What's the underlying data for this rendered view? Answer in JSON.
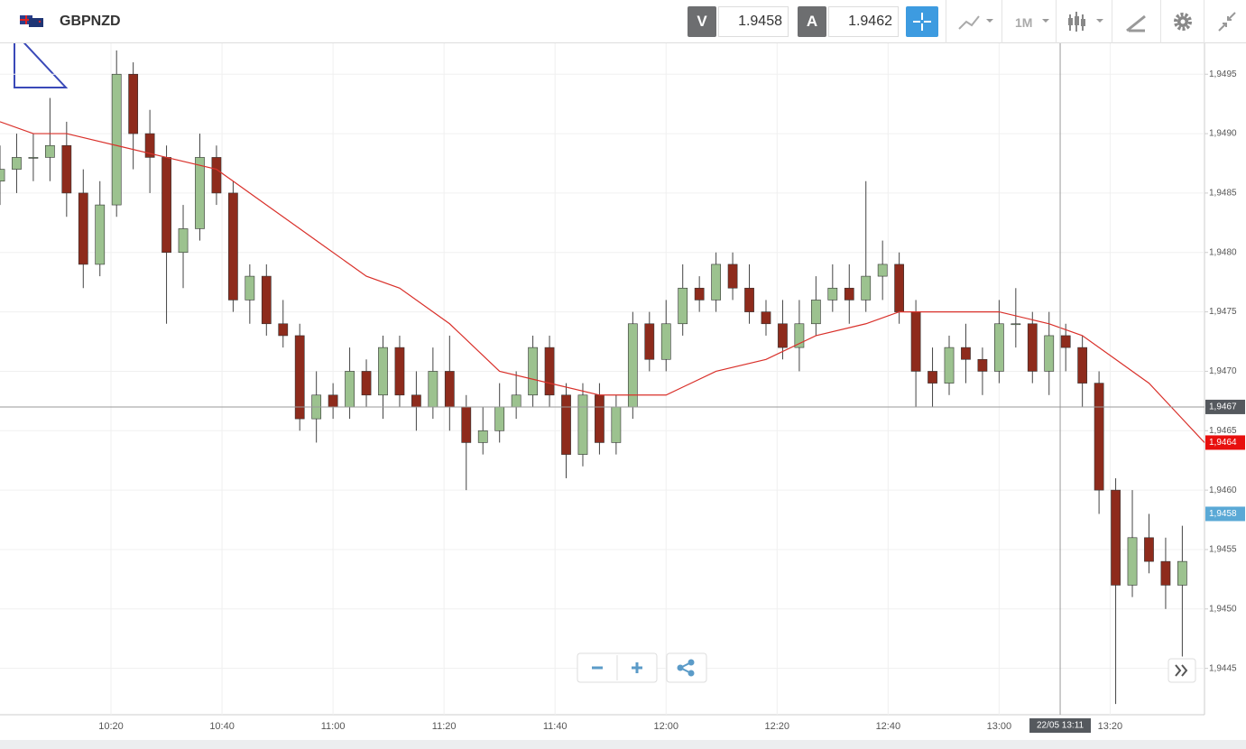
{
  "header": {
    "symbol": "GBPNZD",
    "sell_label": "V",
    "sell_price": "1.9458",
    "buy_label": "A",
    "buy_price": "1.9462",
    "timeframe": "1M"
  },
  "chart_data": {
    "type": "candlestick",
    "x": [
      "10:00",
      "10:03",
      "10:06",
      "10:09",
      "10:12",
      "10:15",
      "10:18",
      "10:21",
      "10:24",
      "10:27",
      "10:30",
      "10:33",
      "10:36",
      "10:39",
      "10:42",
      "10:45",
      "10:48",
      "10:51",
      "10:54",
      "10:57",
      "11:00",
      "11:03",
      "11:06",
      "11:09",
      "11:12",
      "11:15",
      "11:18",
      "11:21",
      "11:24",
      "11:27",
      "11:30",
      "11:33",
      "11:36",
      "11:39",
      "11:42",
      "11:45",
      "11:48",
      "11:51",
      "11:54",
      "11:57",
      "12:00",
      "12:03",
      "12:06",
      "12:09",
      "12:12",
      "12:15",
      "12:18",
      "12:21",
      "12:24",
      "12:27",
      "12:30",
      "12:33",
      "12:36",
      "12:39",
      "12:42",
      "12:45",
      "12:48",
      "12:51",
      "12:54",
      "12:57",
      "13:00",
      "13:03",
      "13:06",
      "13:09",
      "13:12",
      "13:15",
      "13:18",
      "13:21",
      "13:24",
      "13:27",
      "13:30",
      "13:33"
    ],
    "open": [
      1.9486,
      1.9487,
      1.9488,
      1.9488,
      1.9489,
      1.9485,
      1.9479,
      1.9484,
      1.9495,
      1.949,
      1.9488,
      1.948,
      1.9482,
      1.9488,
      1.9485,
      1.9476,
      1.9478,
      1.9474,
      1.9473,
      1.9466,
      1.9468,
      1.9467,
      1.947,
      1.9468,
      1.9472,
      1.9468,
      1.9467,
      1.947,
      1.9467,
      1.9464,
      1.9465,
      1.9467,
      1.9468,
      1.9472,
      1.9468,
      1.9463,
      1.9468,
      1.9464,
      1.9467,
      1.9474,
      1.9471,
      1.9474,
      1.9477,
      1.9476,
      1.9479,
      1.9477,
      1.9475,
      1.9474,
      1.9472,
      1.9474,
      1.9476,
      1.9477,
      1.9476,
      1.9478,
      1.9479,
      1.9475,
      1.947,
      1.9469,
      1.9472,
      1.9471,
      1.947,
      1.9474,
      1.9474,
      1.947,
      1.9473,
      1.9472,
      1.9469,
      1.946,
      1.9452,
      1.9456,
      1.9454,
      1.9452
    ],
    "high": [
      1.9489,
      1.949,
      1.949,
      1.9493,
      1.9491,
      1.9487,
      1.9486,
      1.9497,
      1.9496,
      1.9492,
      1.9489,
      1.9484,
      1.949,
      1.9489,
      1.9486,
      1.9479,
      1.9479,
      1.9476,
      1.9474,
      1.947,
      1.9469,
      1.9472,
      1.9471,
      1.9473,
      1.9473,
      1.947,
      1.9472,
      1.9473,
      1.9468,
      1.9467,
      1.9469,
      1.947,
      1.9473,
      1.9473,
      1.9469,
      1.9469,
      1.9469,
      1.9468,
      1.9475,
      1.9475,
      1.9476,
      1.9479,
      1.9478,
      1.948,
      1.948,
      1.9479,
      1.9476,
      1.9476,
      1.9476,
      1.9478,
      1.9479,
      1.9479,
      1.9486,
      1.9481,
      1.948,
      1.9476,
      1.9472,
      1.9473,
      1.9474,
      1.9472,
      1.9476,
      1.9477,
      1.9475,
      1.9475,
      1.9474,
      1.9473,
      1.947,
      1.9461,
      1.946,
      1.9458,
      1.9456,
      1.9457
    ],
    "low": [
      1.9484,
      1.9485,
      1.9486,
      1.9486,
      1.9483,
      1.9477,
      1.9478,
      1.9483,
      1.9487,
      1.9485,
      1.9474,
      1.9477,
      1.9481,
      1.9484,
      1.9475,
      1.9474,
      1.9473,
      1.9472,
      1.9465,
      1.9464,
      1.9466,
      1.9466,
      1.9467,
      1.9466,
      1.9467,
      1.9465,
      1.9466,
      1.9465,
      1.946,
      1.9463,
      1.9464,
      1.9466,
      1.9467,
      1.9467,
      1.9461,
      1.9462,
      1.9463,
      1.9463,
      1.9466,
      1.947,
      1.947,
      1.9473,
      1.9475,
      1.9475,
      1.9476,
      1.9474,
      1.9473,
      1.9471,
      1.947,
      1.9473,
      1.9475,
      1.9474,
      1.9475,
      1.9476,
      1.9474,
      1.9467,
      1.9467,
      1.9468,
      1.9469,
      1.9468,
      1.9469,
      1.9472,
      1.9469,
      1.9468,
      1.947,
      1.9467,
      1.9458,
      1.9442,
      1.9451,
      1.9453,
      1.945,
      1.9446
    ],
    "close": [
      1.9487,
      1.9488,
      1.9488,
      1.9489,
      1.9485,
      1.9479,
      1.9484,
      1.9495,
      1.949,
      1.9488,
      1.948,
      1.9482,
      1.9488,
      1.9485,
      1.9476,
      1.9478,
      1.9474,
      1.9473,
      1.9466,
      1.9468,
      1.9467,
      1.947,
      1.9468,
      1.9472,
      1.9468,
      1.9467,
      1.947,
      1.9467,
      1.9464,
      1.9465,
      1.9467,
      1.9468,
      1.9472,
      1.9468,
      1.9463,
      1.9468,
      1.9464,
      1.9467,
      1.9474,
      1.9471,
      1.9474,
      1.9477,
      1.9476,
      1.9479,
      1.9477,
      1.9475,
      1.9474,
      1.9472,
      1.9474,
      1.9476,
      1.9477,
      1.9476,
      1.9478,
      1.9479,
      1.9475,
      1.947,
      1.9469,
      1.9472,
      1.9471,
      1.947,
      1.9474,
      1.9474,
      1.947,
      1.9473,
      1.9472,
      1.9469,
      1.946,
      1.9452,
      1.9456,
      1.9454,
      1.9452,
      1.9454
    ],
    "up_color": "#9cc28f",
    "down_color": "#8e2b1c",
    "moving_average": {
      "color": "#d9302a",
      "x": [
        "10:00",
        "10:06",
        "10:12",
        "10:21",
        "10:30",
        "10:39",
        "10:48",
        "10:57",
        "11:06",
        "11:12",
        "11:21",
        "11:30",
        "11:39",
        "11:48",
        "12:00",
        "12:09",
        "12:18",
        "12:27",
        "12:36",
        "12:42",
        "12:51",
        "13:00",
        "13:09",
        "13:15",
        "13:21",
        "13:27",
        "13:33",
        "13:37"
      ],
      "values": [
        1.9491,
        1.949,
        1.949,
        1.9489,
        1.9488,
        1.9487,
        1.9484,
        1.9481,
        1.9478,
        1.9477,
        1.9474,
        1.947,
        1.9469,
        1.9468,
        1.9468,
        1.947,
        1.9471,
        1.9473,
        1.9474,
        1.9475,
        1.9475,
        1.9475,
        1.9474,
        1.9473,
        1.9471,
        1.9469,
        1.9466,
        1.9464
      ]
    },
    "xlim": [
      "10:00",
      "13:37"
    ],
    "xticks": [
      "10:20",
      "10:40",
      "11:00",
      "11:20",
      "11:40",
      "12:00",
      "12:20",
      "12:40",
      "13:00",
      "13:20"
    ],
    "ylim": [
      1.94411,
      1.94976
    ],
    "yticks": [
      {
        "value": 1.9445,
        "label": "1,9445"
      },
      {
        "value": 1.945,
        "label": "1,9450"
      },
      {
        "value": 1.9455,
        "label": "1,9455"
      },
      {
        "value": 1.946,
        "label": "1,9460"
      },
      {
        "value": 1.9465,
        "label": "1,9465"
      },
      {
        "value": 1.947,
        "label": "1,9470"
      },
      {
        "value": 1.9475,
        "label": "1,9475"
      },
      {
        "value": 1.948,
        "label": "1,9480"
      },
      {
        "value": 1.9485,
        "label": "1,9485"
      },
      {
        "value": 1.949,
        "label": "1,9490"
      },
      {
        "value": 1.9495,
        "label": "1,9495"
      }
    ],
    "grid": true,
    "crosshair": {
      "x": "13:11",
      "x_label": "22/05 13:11",
      "y": 1.9467,
      "y_label": "1,9467"
    },
    "price_tags": [
      {
        "value": 1.9464,
        "label": "1,9464",
        "color": "#e8100e"
      },
      {
        "value": 1.9458,
        "label": "1,9458",
        "color": "#5aa9d6"
      }
    ]
  }
}
